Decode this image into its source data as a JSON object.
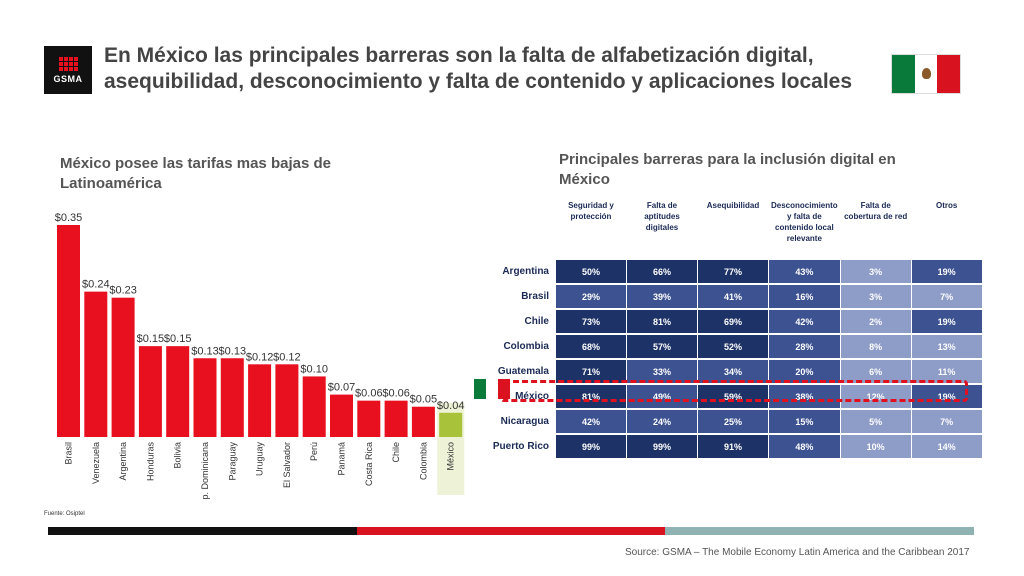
{
  "header": {
    "logo_text": "GSMA",
    "title": "En México las principales barreras son la falta de alfabetización digital, asequibilidad, desconocimiento y falta de contenido y aplicaciones locales",
    "flag_colors": [
      "#0a7a3a",
      "#ffffff",
      "#d9121f"
    ]
  },
  "left": {
    "subtitle": "México posee las tarifas mas bajas de Latinoamérica",
    "source": "Fuente: Osiptel"
  },
  "right": {
    "subtitle": "Principales barreras para la inclusión digital en México"
  },
  "colors": {
    "bar": "#e8101f",
    "highlight_bar": "#a8c23a",
    "highlight_bg": "#eef3d8",
    "heat_dark": "#1d3266",
    "heat_mid": "#3d5290",
    "heat_light": "#8e9cc8",
    "highlight_border": "#e0101e"
  },
  "chart_data": [
    {
      "type": "bar",
      "title": "",
      "categories": [
        "Brasil",
        "Venezuela",
        "Argentina",
        "Honduras",
        "Bolivia",
        "Rep. Dominicana",
        "Paraguay",
        "Uruguay",
        "El Salvador",
        "Perú",
        "Panamá",
        "Costa Rica",
        "Chile",
        "Colombia",
        "México"
      ],
      "values": [
        0.35,
        0.24,
        0.23,
        0.15,
        0.15,
        0.13,
        0.13,
        0.12,
        0.12,
        0.1,
        0.07,
        0.06,
        0.06,
        0.05,
        0.04
      ],
      "value_labels": [
        "$0.35",
        "$0.24",
        "$0.23",
        "$0.15",
        "$0.15",
        "$0.13",
        "$0.13",
        "$0.12",
        "$0.12",
        "$0.10",
        "$0.07",
        "$0.06",
        "$0.06",
        "$0.05",
        "$0.04"
      ],
      "highlight": "México",
      "ylim": [
        0,
        0.35
      ]
    },
    {
      "type": "heatmap",
      "columns": [
        "Seguridad y protección",
        "Falta de aptitudes digitales",
        "Asequibilidad",
        "Desconocimiento y falta de contenido local relevante",
        "Falta de cobertura de red",
        "Otros"
      ],
      "rows": [
        "Argentina",
        "Brasil",
        "Chile",
        "Colombia",
        "Guatemala",
        "México",
        "Nicaragua",
        "Puerto Rico"
      ],
      "values": [
        [
          "50%",
          "66%",
          "77%",
          "43%",
          "3%",
          "19%"
        ],
        [
          "29%",
          "39%",
          "41%",
          "16%",
          "3%",
          "7%"
        ],
        [
          "73%",
          "81%",
          "69%",
          "42%",
          "2%",
          "19%"
        ],
        [
          "68%",
          "57%",
          "52%",
          "28%",
          "8%",
          "13%"
        ],
        [
          "71%",
          "33%",
          "34%",
          "20%",
          "6%",
          "11%"
        ],
        [
          "81%",
          "49%",
          "59%",
          "38%",
          "12%",
          "19%"
        ],
        [
          "42%",
          "24%",
          "25%",
          "15%",
          "5%",
          "7%"
        ],
        [
          "99%",
          "99%",
          "91%",
          "48%",
          "10%",
          "14%"
        ]
      ],
      "highlight_row": "México"
    }
  ],
  "footer": {
    "source": "Source: GSMA – The Mobile Economy Latin America and the Caribbean 2017",
    "bar_colors": [
      "#111111",
      "#d9121f",
      "#8fb3b3"
    ]
  }
}
